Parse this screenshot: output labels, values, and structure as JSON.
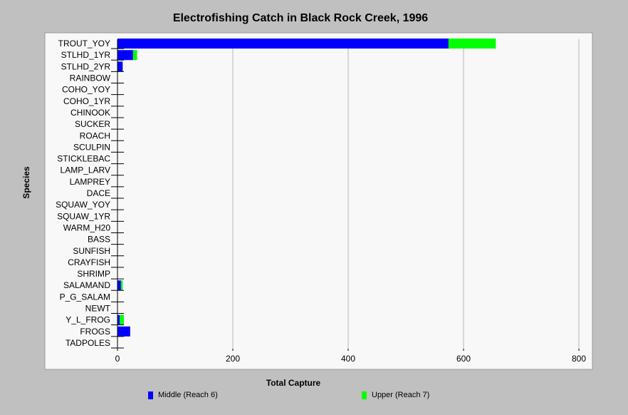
{
  "chart_data": {
    "type": "bar",
    "orientation": "horizontal",
    "stacked": true,
    "title": "Electrofishing Catch in Black Rock Creek, 1996",
    "xlabel": "Total Capture",
    "ylabel": "Species",
    "xlim": [
      0,
      800
    ],
    "xticks": [
      0,
      200,
      400,
      600,
      800
    ],
    "grid": true,
    "legend_position": "bottom",
    "categories": [
      "TROUT_YOY",
      "STLHD_1YR",
      "STLHD_2YR",
      "RAINBOW",
      "COHO_YOY",
      "COHO_1YR",
      "CHINOOK",
      "SUCKER",
      "ROACH",
      "SCULPIN",
      "STICKLEBAC",
      "LAMP_LARV",
      "LAMPREY",
      "DACE",
      "SQUAW_YOY",
      "SQUAW_1YR",
      "WARM_H20",
      "BASS",
      "SUNFISH",
      "CRAYFISH",
      "SHRIMP",
      "SALAMAND",
      "P_G_SALAM",
      "NEWT",
      "Y_L_FROG",
      "FROGS",
      "TADPOLES"
    ],
    "series": [
      {
        "name": "Middle (Reach 6)",
        "color": "#0000ff",
        "values": [
          574,
          27,
          9,
          0,
          0,
          0,
          0,
          0,
          0,
          0,
          0,
          0,
          0,
          0,
          0,
          0,
          0,
          0,
          0,
          0,
          0,
          6,
          0,
          0,
          4,
          22,
          0
        ]
      },
      {
        "name": "Upper (Reach 7)",
        "color": "#00ff00",
        "values": [
          82,
          7,
          0,
          0,
          0,
          0,
          0,
          0,
          0,
          0,
          0,
          0,
          0,
          0,
          0,
          0,
          0,
          0,
          0,
          0,
          0,
          3,
          0,
          0,
          7,
          0,
          0
        ]
      }
    ]
  }
}
